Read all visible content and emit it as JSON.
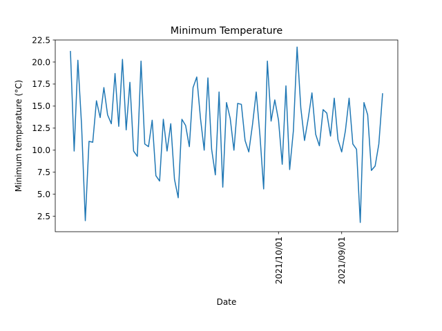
{
  "chart_data": {
    "type": "line",
    "title": "Minimum Temperature",
    "xlabel": "Date",
    "ylabel": "Minimum temperature (°C)",
    "ylim": [
      0.75,
      22.5
    ],
    "yticks": [
      2.5,
      5.0,
      7.5,
      10.0,
      12.5,
      15.0,
      17.5,
      20.0,
      22.5
    ],
    "ytick_labels": [
      "2.5",
      "5.0",
      "7.5",
      "10.0",
      "12.5",
      "15.0",
      "17.5",
      "20.0",
      "22.5"
    ],
    "xticks": [
      {
        "label": "2021/10/01",
        "index": 56
      },
      {
        "label": "2021/09/01",
        "index": 73
      }
    ],
    "grid": false,
    "line_color": "#1f77b4",
    "series": [
      {
        "values": [
          21.2,
          9.9,
          20.2,
          12.8,
          2.0,
          11.0,
          10.9,
          15.6,
          13.7,
          17.1,
          14.0,
          13.0,
          18.7,
          12.7,
          20.3,
          12.3,
          17.7,
          9.9,
          9.3,
          20.1,
          10.7,
          10.4,
          13.4,
          7.1,
          6.5,
          13.5,
          9.9,
          13.0,
          6.7,
          4.6,
          13.5,
          12.8,
          10.4,
          17.1,
          18.3,
          13.6,
          10.0,
          18.2,
          10.1,
          7.2,
          16.6,
          5.8,
          15.4,
          13.6,
          10.0,
          15.3,
          15.2,
          11.1,
          9.8,
          12.9,
          16.6,
          11.7,
          5.6,
          20.1,
          13.3,
          15.7,
          13.4,
          8.4,
          17.3,
          7.8,
          12.2,
          21.7,
          14.8,
          11.1,
          13.6,
          16.5,
          11.8,
          10.5,
          14.6,
          14.2,
          11.6,
          15.9,
          11.2,
          9.8,
          12.2,
          15.9,
          10.7,
          10.1,
          1.8,
          15.4,
          14.0,
          7.7,
          8.2,
          10.7,
          16.4
        ]
      }
    ]
  }
}
